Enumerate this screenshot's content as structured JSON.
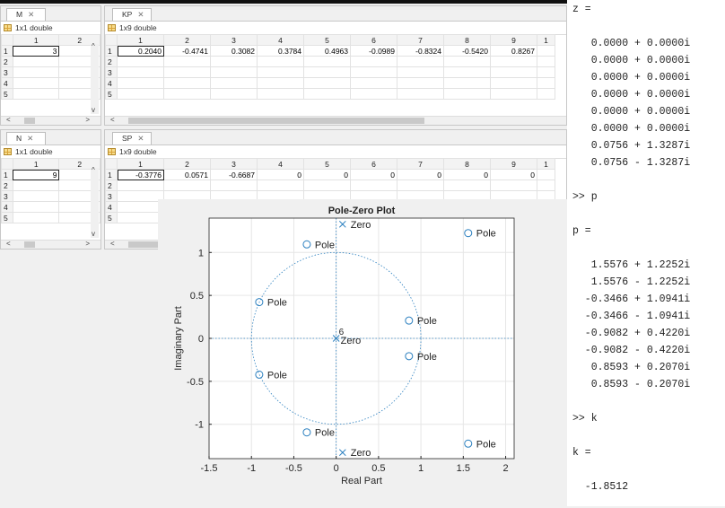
{
  "variables": {
    "M": {
      "tab": "M",
      "type": "1x1 double",
      "cols": [
        "1",
        "2"
      ],
      "rows": [
        "1",
        "2",
        "3",
        "4",
        "5"
      ],
      "values": [
        [
          "3",
          ""
        ]
      ]
    },
    "KP": {
      "tab": "KP",
      "type": "1x9 double",
      "cols": [
        "1",
        "2",
        "3",
        "4",
        "5",
        "6",
        "7",
        "8",
        "9",
        "1"
      ],
      "rows": [
        "1",
        "2",
        "3",
        "4",
        "5"
      ],
      "values": [
        [
          "0.2040",
          "-0.4741",
          "0.3082",
          "0.3784",
          "0.4963",
          "-0.0989",
          "-0.8324",
          "-0.5420",
          "0.8267",
          ""
        ]
      ]
    },
    "N": {
      "tab": "N",
      "type": "1x1 double",
      "cols": [
        "1",
        "2"
      ],
      "rows": [
        "1",
        "2",
        "3",
        "4",
        "5"
      ],
      "values": [
        [
          "9",
          ""
        ]
      ]
    },
    "SP": {
      "tab": "SP",
      "type": "1x9 double",
      "cols": [
        "1",
        "2",
        "3",
        "4",
        "5",
        "6",
        "7",
        "8",
        "9",
        "1"
      ],
      "rows": [
        "1",
        "2",
        "3",
        "4",
        "5"
      ],
      "values": [
        [
          "-0.3776",
          "0.0571",
          "-0.6687",
          "0",
          "0",
          "0",
          "0",
          "0",
          "0",
          ""
        ]
      ]
    }
  },
  "close_glyph": "✕",
  "console": {
    "lines": [
      "z =",
      "",
      "   0.0000 + 0.0000i",
      "   0.0000 + 0.0000i",
      "   0.0000 + 0.0000i",
      "   0.0000 + 0.0000i",
      "   0.0000 + 0.0000i",
      "   0.0000 + 0.0000i",
      "   0.0756 + 1.3287i",
      "   0.0756 - 1.3287i",
      "",
      ">> p",
      "",
      "p =",
      "",
      "   1.5576 + 1.2252i",
      "   1.5576 - 1.2252i",
      "  -0.3466 + 1.0941i",
      "  -0.3466 - 1.0941i",
      "  -0.9082 + 0.4220i",
      "  -0.9082 - 0.4220i",
      "   0.8593 + 0.2070i",
      "   0.8593 - 0.2070i",
      "",
      ">> k",
      "",
      "k =",
      "",
      "  -1.8512"
    ]
  },
  "chart_data": {
    "type": "scatter",
    "title": "Pole-Zero Plot",
    "xlabel": "Real Part",
    "ylabel": "Imaginary Part",
    "xlim": [
      -1.5,
      2.1
    ],
    "ylim": [
      -1.4,
      1.4
    ],
    "xticks": [
      "-1.5",
      "-1",
      "-0.5",
      "0",
      "0.5",
      "1",
      "1.5",
      "2"
    ],
    "xtick_values": [
      -1.5,
      -1,
      -0.5,
      0,
      0.5,
      1,
      1.5,
      2
    ],
    "yticks": [
      "1",
      "0.5",
      "0",
      "-0.5",
      "-1"
    ],
    "ytick_values": [
      1,
      0.5,
      0,
      -0.5,
      -1
    ],
    "grid": true,
    "unit_circle": true,
    "zeros": [
      {
        "x": 0.0756,
        "y": 1.3287,
        "label": "Zero"
      },
      {
        "x": 0.0756,
        "y": -1.3287,
        "label": "Zero"
      },
      {
        "x": 0,
        "y": 0,
        "label": "Zero",
        "multiplicity": "6"
      }
    ],
    "poles": [
      {
        "x": 1.5576,
        "y": 1.2252,
        "label": "Pole"
      },
      {
        "x": 1.5576,
        "y": -1.2252,
        "label": "Pole"
      },
      {
        "x": -0.3466,
        "y": 1.0941,
        "label": "Pole"
      },
      {
        "x": -0.3466,
        "y": -1.0941,
        "label": "Pole"
      },
      {
        "x": -0.9082,
        "y": 0.422,
        "label": "Pole"
      },
      {
        "x": -0.9082,
        "y": -0.422,
        "label": "Pole"
      },
      {
        "x": 0.8593,
        "y": 0.207,
        "label": "Pole"
      },
      {
        "x": 0.8593,
        "y": -0.207,
        "label": "Pole"
      }
    ],
    "marker_color": "#2a7fbf"
  }
}
